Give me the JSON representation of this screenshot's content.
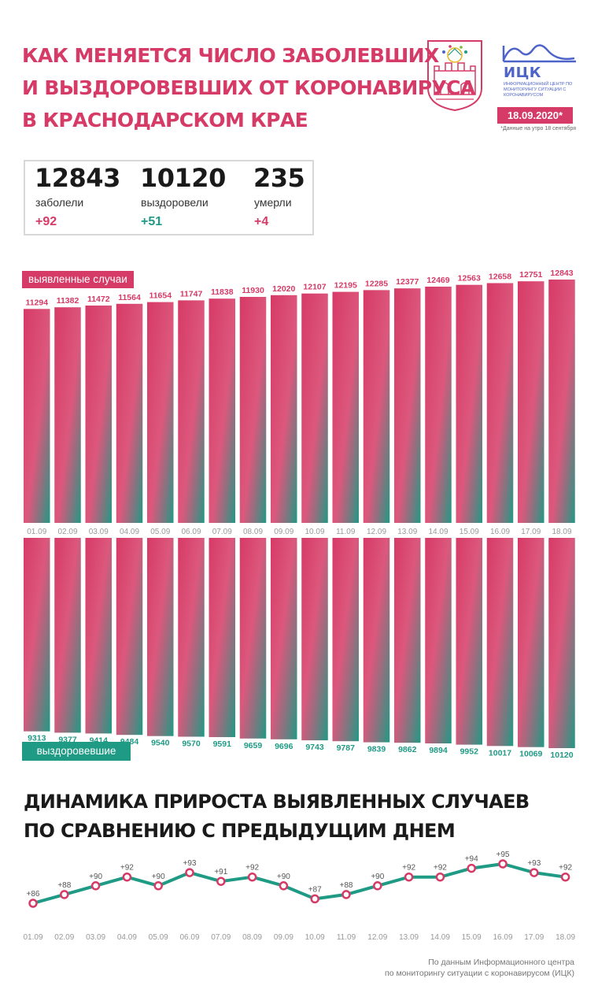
{
  "header": {
    "title_lines": [
      "КАК МЕНЯЕТСЯ ЧИСЛО ЗАБОЛЕВШИХ",
      "И ВЫЗДОРОВЕВШИХ ОТ КОРОНАВИРУСА",
      "В КРАСНОДАРСКОМ КРАЕ"
    ],
    "logo_name": "ИЦК",
    "logo_subtitle": "Информационный центр по мониторингу ситуации с коронавирусом",
    "date": "18.09.2020*",
    "date_note": "*Данные на утро 18 сентября",
    "emblem_icon": "krasnodar-coat-of-arms-icon",
    "logo_icon": "ick-logo-icon"
  },
  "stats": {
    "infected": {
      "value": "12843",
      "label": "заболели",
      "delta": "+92"
    },
    "recovered": {
      "value": "10120",
      "label": "выздоровели",
      "delta": "+51"
    },
    "died": {
      "value": "235",
      "label": "умерли",
      "delta": "+4"
    }
  },
  "colors": {
    "pink": "#d63a66",
    "teal": "#1f9a85",
    "gray_text": "#999999"
  },
  "labels": {
    "cases": "выявленные случаи",
    "recovered": "выздоровевшие"
  },
  "dynamics": {
    "title_lines": [
      "ДИНАМИКА ПРИРОСТА ВЫЯВЛЕННЫХ СЛУЧАЕВ",
      "ПО СРАВНЕНИЮ С ПРЕДЫДУЩИМ ДНЕМ"
    ]
  },
  "source_lines": [
    "По данным Информационного центра",
    "по мониторингу ситуации с коронавирусом (ИЦК)"
  ],
  "chart_data": [
    {
      "type": "bar",
      "categories": [
        "01.09",
        "02.09",
        "03.09",
        "04.09",
        "05.09",
        "06.09",
        "07.09",
        "08.09",
        "09.09",
        "10.09",
        "11.09",
        "12.09",
        "13.09",
        "14.09",
        "15.09",
        "16.09",
        "17.09",
        "18.09"
      ],
      "series": [
        {
          "name": "выявленные случаи",
          "values": [
            11294,
            11382,
            11472,
            11564,
            11654,
            11747,
            11838,
            11930,
            12020,
            12107,
            12195,
            12285,
            12377,
            12469,
            12563,
            12658,
            12751,
            12843
          ]
        },
        {
          "name": "выздоровевшие",
          "values": [
            9313,
            9377,
            9414,
            9484,
            9540,
            9570,
            9591,
            9659,
            9696,
            9743,
            9787,
            9839,
            9862,
            9894,
            9952,
            10017,
            10069,
            10120
          ]
        }
      ]
    },
    {
      "type": "line",
      "title": "ДИНАМИКА ПРИРОСТА ВЫЯВЛЕННЫХ СЛУЧАЕВ ПО СРАВНЕНИЮ С ПРЕДЫДУЩИМ ДНЕМ",
      "categories": [
        "01.09",
        "02.09",
        "03.09",
        "04.09",
        "05.09",
        "06.09",
        "07.09",
        "08.09",
        "09.09",
        "10.09",
        "11.09",
        "12.09",
        "13.09",
        "14.09",
        "15.09",
        "16.09",
        "17.09",
        "18.09"
      ],
      "values": [
        86,
        88,
        90,
        92,
        90,
        93,
        91,
        92,
        90,
        87,
        88,
        90,
        92,
        92,
        94,
        95,
        93,
        92
      ],
      "value_labels": [
        "+86",
        "+88",
        "+90",
        "+92",
        "+90",
        "+93",
        "+91",
        "+92",
        "+90",
        "+87",
        "+88",
        "+90",
        "+92",
        "+92",
        "+94",
        "+95",
        "+93",
        "+92"
      ]
    }
  ]
}
